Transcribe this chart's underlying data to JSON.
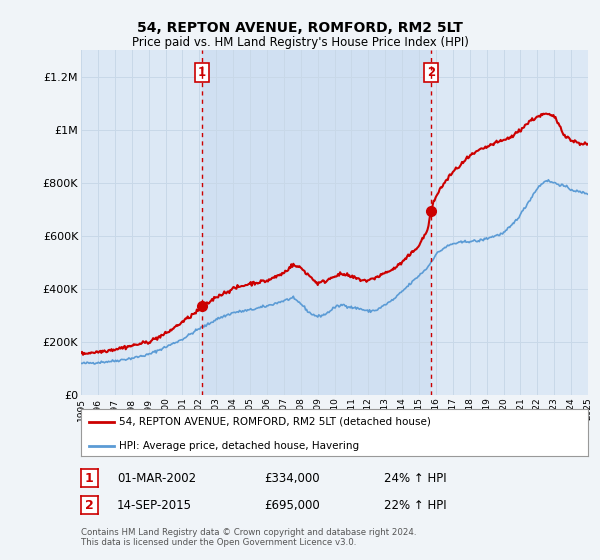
{
  "title": "54, REPTON AVENUE, ROMFORD, RM2 5LT",
  "subtitle": "Price paid vs. HM Land Registry's House Price Index (HPI)",
  "background_color": "#f0f4f8",
  "plot_bg_color": "#dce8f5",
  "highlight_color": "#c8dbf0",
  "legend_label_red": "54, REPTON AVENUE, ROMFORD, RM2 5LT (detached house)",
  "legend_label_blue": "HPI: Average price, detached house, Havering",
  "annotation1_label": "1",
  "annotation1_date": "01-MAR-2002",
  "annotation1_price": "£334,000",
  "annotation1_hpi": "24% ↑ HPI",
  "annotation2_label": "2",
  "annotation2_date": "14-SEP-2015",
  "annotation2_price": "£695,000",
  "annotation2_hpi": "22% ↑ HPI",
  "footer": "Contains HM Land Registry data © Crown copyright and database right 2024.\nThis data is licensed under the Open Government Licence v3.0.",
  "ylim": [
    0,
    1300000
  ],
  "yticks": [
    0,
    200000,
    400000,
    600000,
    800000,
    1000000,
    1200000
  ],
  "ytick_labels": [
    "£0",
    "£200K",
    "£400K",
    "£600K",
    "£800K",
    "£1M",
    "£1.2M"
  ],
  "x_start_year": 1995,
  "x_end_year": 2025,
  "sale1_year": 2002.17,
  "sale1_price": 334000,
  "sale2_year": 2015.71,
  "sale2_price": 695000,
  "vline1_year": 2002.17,
  "vline2_year": 2015.71,
  "red_color": "#cc0000",
  "blue_color": "#5b9bd5",
  "grid_color": "#c8d8e8"
}
